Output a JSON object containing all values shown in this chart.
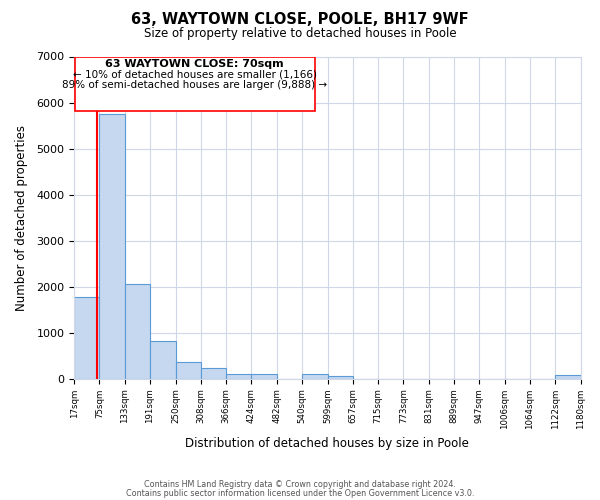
{
  "title": "63, WAYTOWN CLOSE, POOLE, BH17 9WF",
  "subtitle": "Size of property relative to detached houses in Poole",
  "xlabel": "Distribution of detached houses by size in Poole",
  "ylabel": "Number of detached properties",
  "bar_edges": [
    17,
    75,
    133,
    191,
    250,
    308,
    366,
    424,
    482,
    540,
    599,
    657,
    715,
    773,
    831,
    889,
    947,
    1006,
    1064,
    1122,
    1180
  ],
  "bar_heights": [
    1780,
    5750,
    2050,
    820,
    370,
    230,
    110,
    90,
    0,
    90,
    60,
    0,
    0,
    0,
    0,
    0,
    0,
    0,
    0,
    70
  ],
  "bar_color": "#c5d8f0",
  "bar_edge_color": "#5b9bd5",
  "red_line_x": 70,
  "ylim": [
    0,
    7000
  ],
  "tick_labels": [
    "17sqm",
    "75sqm",
    "133sqm",
    "191sqm",
    "250sqm",
    "308sqm",
    "366sqm",
    "424sqm",
    "482sqm",
    "540sqm",
    "599sqm",
    "657sqm",
    "715sqm",
    "773sqm",
    "831sqm",
    "889sqm",
    "947sqm",
    "1006sqm",
    "1064sqm",
    "1122sqm",
    "1180sqm"
  ],
  "annotation_title": "63 WAYTOWN CLOSE: 70sqm",
  "annotation_line1": "← 10% of detached houses are smaller (1,166)",
  "annotation_line2": "89% of semi-detached houses are larger (9,888) →",
  "footer1": "Contains HM Land Registry data © Crown copyright and database right 2024.",
  "footer2": "Contains public sector information licensed under the Open Government Licence v3.0.",
  "background_color": "#ffffff",
  "grid_color": "#d0d8e8"
}
